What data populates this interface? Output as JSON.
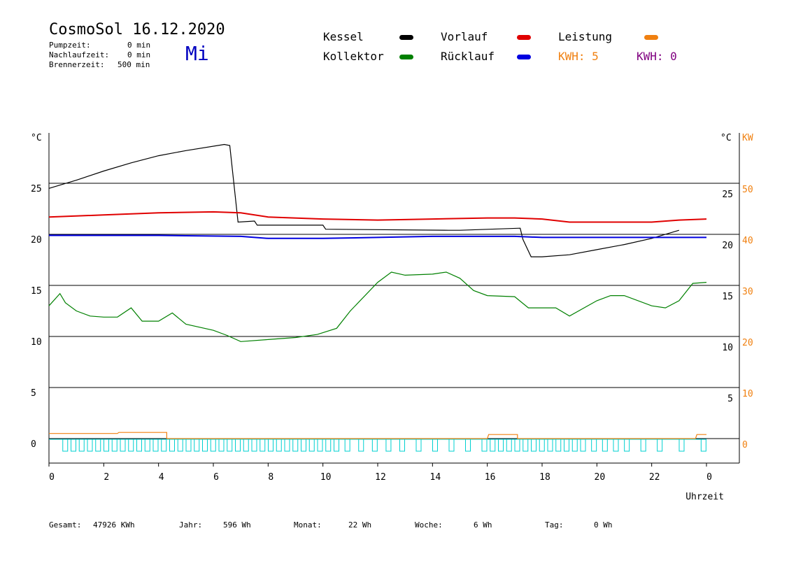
{
  "header": {
    "title": "CosmoSol 16.12.2020",
    "day": "Mi",
    "pump_label": "Pumpzeit:",
    "pump_value": "0 min",
    "nachlauf_label": "Nachlaufzeit:",
    "nachlauf_value": "0 min",
    "brenner_label": "Brennerzeit:",
    "brenner_value": "500 min"
  },
  "legend": {
    "kessel": "Kessel",
    "kollektor": "Kollektor",
    "vorlauf": "Vorlauf",
    "ruecklauf": "Rücklauf",
    "leistung": "Leistung",
    "kwh1": "KWH: 5",
    "kwh2": "KWH: 0"
  },
  "colors": {
    "kessel": "#000000",
    "kollektor": "#008000",
    "vorlauf": "#e00000",
    "ruecklauf": "#0000e0",
    "leistung": "#f08010",
    "pump": "#00d0d0",
    "kwh2": "#800080"
  },
  "chart_data": {
    "type": "line",
    "xlabel": "Uhrzeit",
    "x_ticks": [
      "0",
      "2",
      "4",
      "6",
      "8",
      "10",
      "12",
      "14",
      "16",
      "18",
      "20",
      "22",
      "0"
    ],
    "y_left_unit": "°C",
    "y_left_ticks": [
      "0",
      "5",
      "10",
      "15",
      "20",
      "25"
    ],
    "y_right_unit": "°C",
    "y_right_ticks": [
      "5",
      "10",
      "15",
      "20",
      "25"
    ],
    "y2_unit": "KW",
    "y2_ticks": [
      "0",
      "10",
      "20",
      "30",
      "40",
      "50"
    ],
    "xlim": [
      0,
      24
    ],
    "ylim": [
      -2,
      30
    ],
    "grid_y": [
      0,
      5,
      10,
      15,
      20,
      25
    ],
    "series": [
      {
        "name": "Kessel",
        "color_key": "kessel",
        "points": [
          [
            0,
            24.5
          ],
          [
            1,
            25.3
          ],
          [
            2,
            26.2
          ],
          [
            3,
            27
          ],
          [
            4,
            27.7
          ],
          [
            5,
            28.2
          ],
          [
            6.4,
            28.8
          ],
          [
            6.6,
            28.7
          ],
          [
            6.9,
            21.2
          ],
          [
            7.5,
            21.3
          ],
          [
            7.6,
            20.9
          ],
          [
            10,
            20.9
          ],
          [
            10.1,
            20.5
          ],
          [
            14.6,
            20.4
          ],
          [
            15,
            20.4
          ],
          [
            17.2,
            20.6
          ],
          [
            17.3,
            19.5
          ],
          [
            17.6,
            17.8
          ],
          [
            18,
            17.8
          ],
          [
            19,
            18
          ],
          [
            20,
            18.5
          ],
          [
            21,
            19
          ],
          [
            22,
            19.6
          ],
          [
            23,
            20.4
          ]
        ]
      },
      {
        "name": "Vorlauf",
        "color_key": "vorlauf",
        "points": [
          [
            0,
            21.7
          ],
          [
            2,
            21.9
          ],
          [
            4,
            22.1
          ],
          [
            6,
            22.2
          ],
          [
            7,
            22.1
          ],
          [
            8,
            21.7
          ],
          [
            10,
            21.5
          ],
          [
            12,
            21.4
          ],
          [
            14,
            21.5
          ],
          [
            16,
            21.6
          ],
          [
            17,
            21.6
          ],
          [
            18,
            21.5
          ],
          [
            19,
            21.2
          ],
          [
            20,
            21.2
          ],
          [
            22,
            21.2
          ],
          [
            23,
            21.4
          ],
          [
            24,
            21.5
          ]
        ]
      },
      {
        "name": "Rücklauf",
        "color_key": "ruecklauf",
        "points": [
          [
            0,
            19.9
          ],
          [
            4,
            19.9
          ],
          [
            7,
            19.8
          ],
          [
            8,
            19.6
          ],
          [
            10,
            19.6
          ],
          [
            12,
            19.7
          ],
          [
            14,
            19.8
          ],
          [
            17,
            19.8
          ],
          [
            18,
            19.7
          ],
          [
            20,
            19.7
          ],
          [
            22,
            19.7
          ],
          [
            24,
            19.7
          ]
        ]
      },
      {
        "name": "Kollektor",
        "color_key": "kollektor",
        "points": [
          [
            0,
            13
          ],
          [
            0.4,
            14.2
          ],
          [
            0.6,
            13.3
          ],
          [
            1,
            12.5
          ],
          [
            1.5,
            12
          ],
          [
            2,
            11.9
          ],
          [
            2.5,
            11.9
          ],
          [
            3,
            12.8
          ],
          [
            3.4,
            11.5
          ],
          [
            4,
            11.5
          ],
          [
            4.5,
            12.3
          ],
          [
            5,
            11.2
          ],
          [
            6,
            10.6
          ],
          [
            6.5,
            10.1
          ],
          [
            7,
            9.5
          ],
          [
            8,
            9.7
          ],
          [
            9,
            9.9
          ],
          [
            9.8,
            10.2
          ],
          [
            10.5,
            10.8
          ],
          [
            11,
            12.5
          ],
          [
            12,
            15.3
          ],
          [
            12.5,
            16.3
          ],
          [
            13,
            16
          ],
          [
            14,
            16.1
          ],
          [
            14.5,
            16.3
          ],
          [
            15,
            15.7
          ],
          [
            15.5,
            14.5
          ],
          [
            16,
            14
          ],
          [
            17,
            13.9
          ],
          [
            17.5,
            12.8
          ],
          [
            18,
            12.8
          ],
          [
            18.5,
            12.8
          ],
          [
            19,
            12
          ],
          [
            20,
            13.5
          ],
          [
            20.5,
            14
          ],
          [
            21,
            14
          ],
          [
            22,
            13
          ],
          [
            22.5,
            12.8
          ],
          [
            23,
            13.5
          ],
          [
            23.5,
            15.2
          ],
          [
            24,
            15.3
          ]
        ]
      },
      {
        "name": "Leistung",
        "color_key": "leistung",
        "points": [
          [
            0,
            0.5
          ],
          [
            2.5,
            0.5
          ],
          [
            2.55,
            0.6
          ],
          [
            4.3,
            0.6
          ],
          [
            4.3,
            0
          ],
          [
            16,
            0
          ],
          [
            16.05,
            0.4
          ],
          [
            17.1,
            0.4
          ],
          [
            17.1,
            0
          ],
          [
            23.6,
            0
          ],
          [
            23.65,
            0.4
          ],
          [
            24,
            0.4
          ]
        ]
      },
      {
        "name": "Pumpe",
        "color_key": "pump",
        "pulses": [
          0.3,
          0.6,
          0.9,
          1.2,
          1.5,
          1.8,
          2.1,
          2.4,
          2.7,
          3.0,
          3.3,
          3.6,
          3.9,
          4.2,
          4.5,
          4.8,
          5.1,
          5.4,
          5.7,
          6.0,
          6.3,
          6.6,
          6.9,
          7.2,
          7.5,
          7.8,
          8.1,
          8.4,
          8.7,
          9.0,
          9.3,
          9.6,
          9.9,
          10.2,
          10.6,
          11.1,
          11.6,
          12.1,
          12.6,
          13.2,
          13.8,
          14.4,
          15.0,
          15.6,
          15.9,
          16.2,
          16.5,
          16.8,
          17.1,
          17.4,
          17.7,
          18.0,
          18.3,
          18.6,
          18.9,
          19.2,
          19.6,
          20.0,
          20.4,
          20.8,
          21.4,
          22.0,
          22.8,
          23.6
        ]
      }
    ]
  },
  "footer": {
    "gesamt_label": "Gesamt:",
    "gesamt_value": "47926 KWh",
    "jahr_label": "Jahr:",
    "jahr_value": "596 Wh",
    "monat_label": "Monat:",
    "monat_value": "22 Wh",
    "woche_label": "Woche:",
    "woche_value": "6 Wh",
    "tag_label": "Tag:",
    "tag_value": "0 Wh"
  }
}
